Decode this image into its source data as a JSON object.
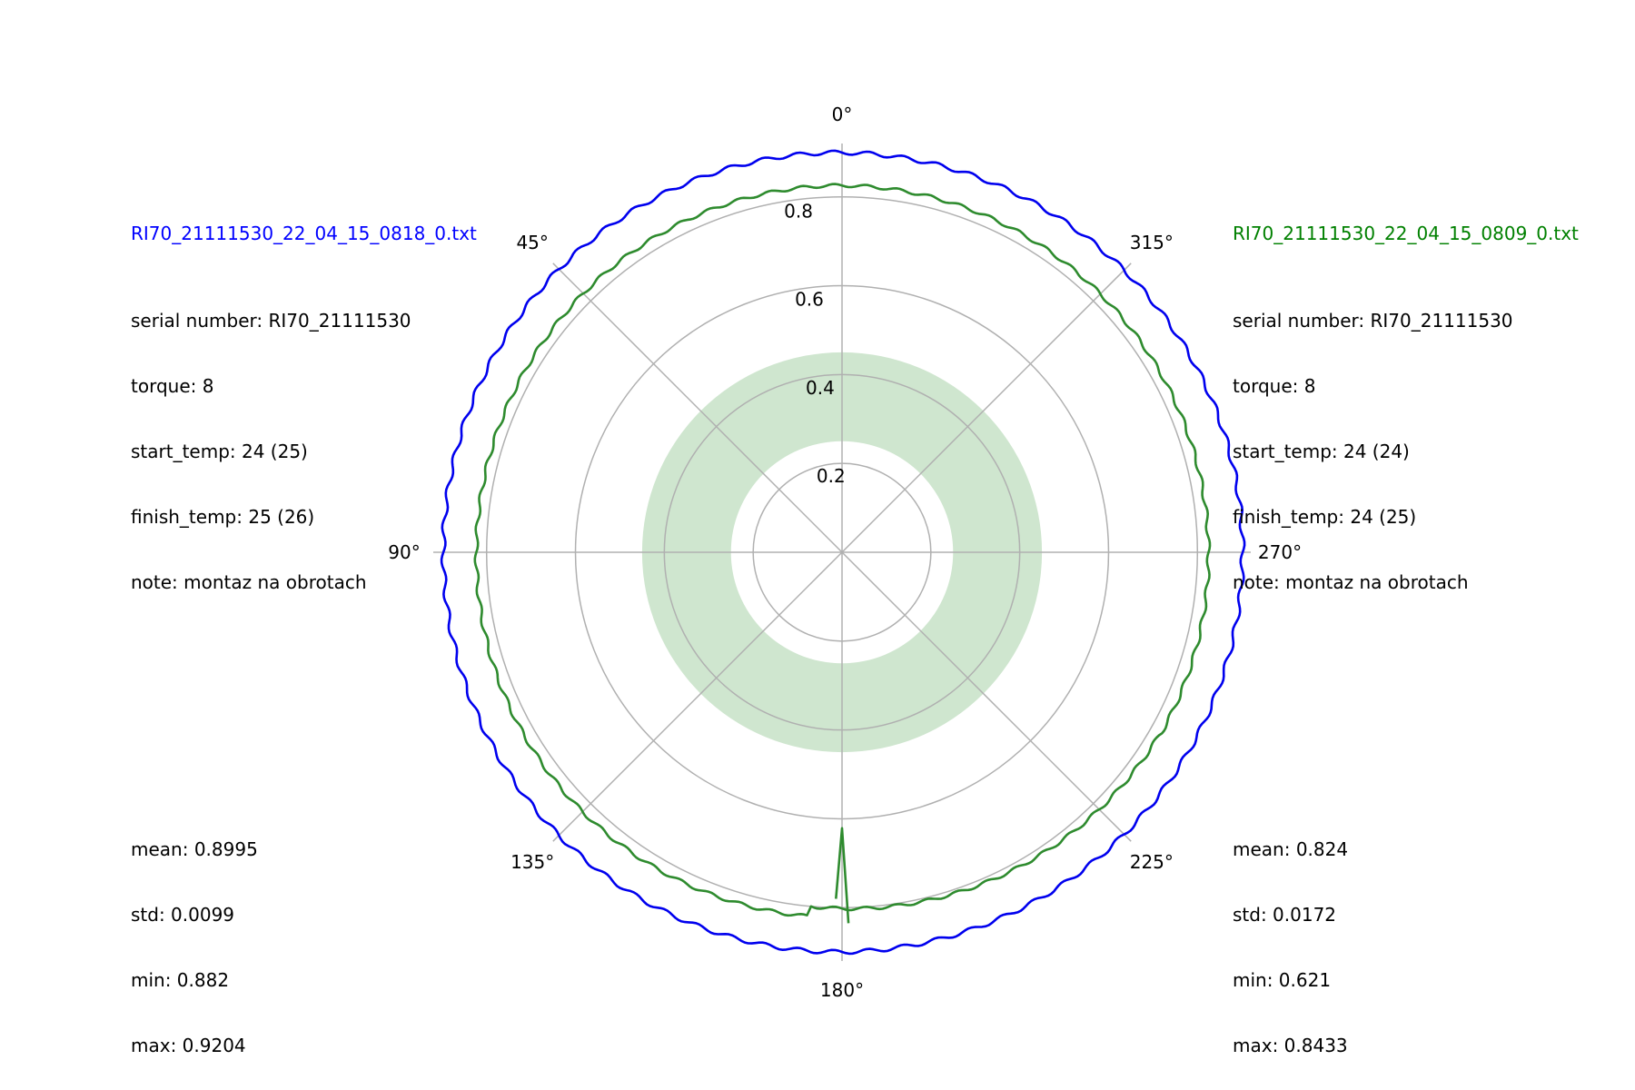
{
  "chart_data": {
    "type": "polar-line",
    "theta_zero": "top",
    "theta_direction": "counterclockwise",
    "r_ticks": [
      0.2,
      0.4,
      0.6,
      0.8
    ],
    "r_tick_labels": [
      "0.2",
      "0.4",
      "0.6",
      "0.8"
    ],
    "r_max": 0.92,
    "theta_ticks_deg": [
      0,
      45,
      90,
      135,
      180,
      225,
      270,
      315
    ],
    "theta_tick_labels": [
      "0°",
      "45°",
      "90°",
      "135°",
      "180°",
      "225°",
      "270°",
      "315°"
    ],
    "band": {
      "r_inner": 0.25,
      "r_outer": 0.45,
      "color": "#cfe6cf"
    },
    "series": [
      {
        "name": "RI70_21111530_22_04_15_0818_0.txt",
        "color": "#0000ee",
        "mean": 0.8995,
        "ripple_amplitude": 0.0045,
        "ripple_cycles": 72,
        "spikes": []
      },
      {
        "name": "RI70_21111530_22_04_15_0809_0.txt",
        "color": "#2e8b2e",
        "mean": 0.824,
        "ripple_amplitude": 0.0035,
        "ripple_cycles": 72,
        "sector_deg": [
          175,
          240
        ],
        "sector_value": 0.8,
        "spikes": [
          {
            "theta_deg": 181,
            "r": 0.835
          },
          {
            "theta_deg": 180,
            "r": 0.621
          },
          {
            "theta_deg": 179,
            "r": 0.78
          }
        ]
      }
    ]
  },
  "left": {
    "title": "RI70_21111530_22_04_15_0818_0.txt",
    "title_color": "#0000ff",
    "serial": "serial number: RI70_21111530",
    "torque": "torque: 8",
    "start_temp": "start_temp: 24 (25)",
    "finish_temp": "finish_temp: 25 (26)",
    "note": "note: montaz na obrotach",
    "mean": "mean: 0.8995",
    "std": "std: 0.0099",
    "min": "min: 0.882",
    "max": "max: 0.9204"
  },
  "right": {
    "title": "RI70_21111530_22_04_15_0809_0.txt",
    "title_color": "#008000",
    "serial": "serial number: RI70_21111530",
    "torque": "torque: 8",
    "start_temp": "start_temp: 24 (24)",
    "finish_temp": "finish_temp: 24 (25)",
    "note": "note: montaz na obrotach",
    "mean": "mean: 0.824",
    "std": "std: 0.0172",
    "min": "min: 0.621",
    "max": "max: 0.8433"
  }
}
